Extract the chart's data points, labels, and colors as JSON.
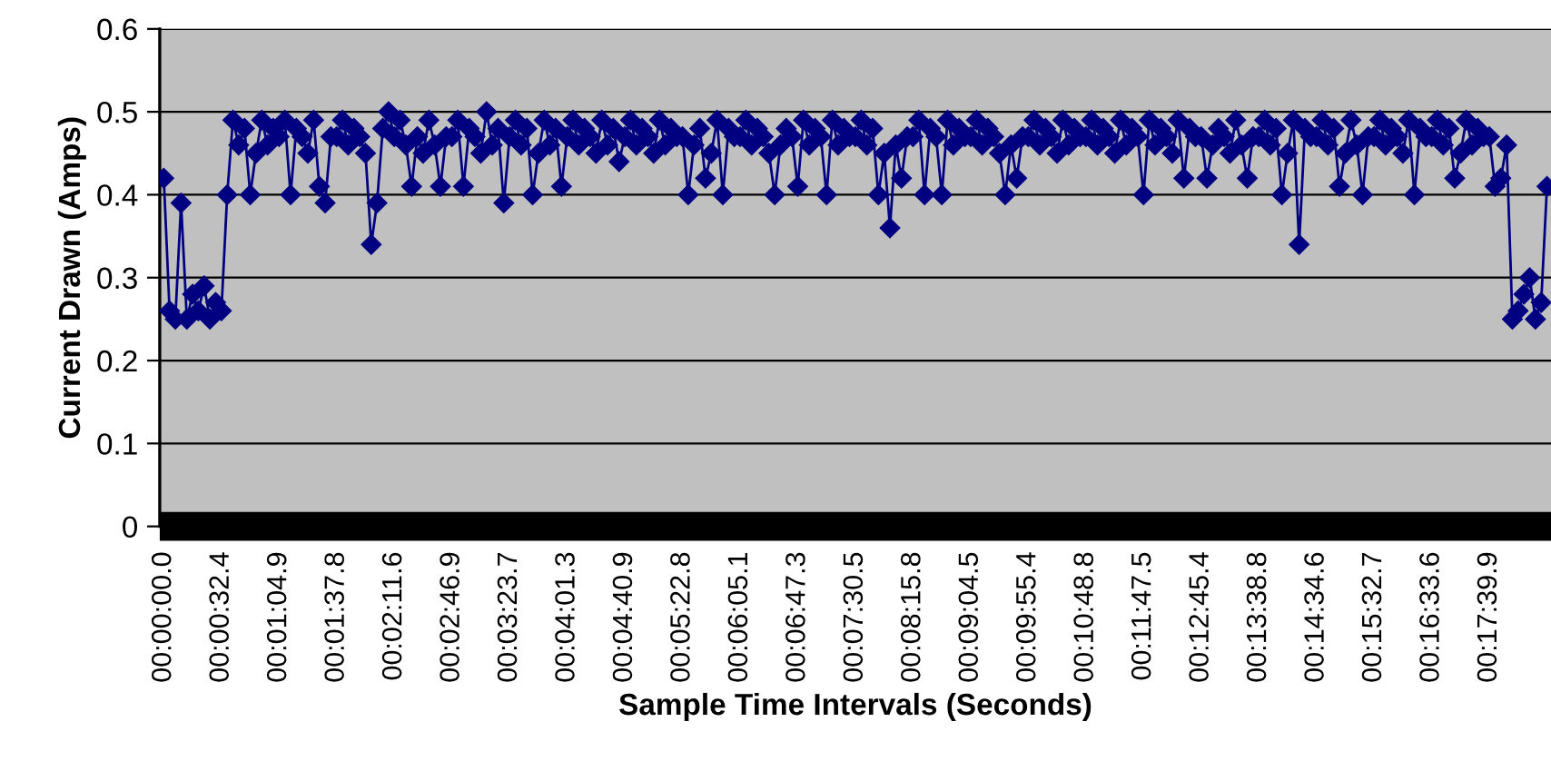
{
  "chart_data": {
    "type": "line",
    "xlabel": "Sample Time Intervals (Seconds)",
    "ylabel": "Current Drawn (Amps)",
    "categories": [
      "00:00:00.0",
      null,
      null,
      null,
      null,
      null,
      null,
      null,
      null,
      null,
      "00:00:32.4",
      null,
      null,
      null,
      null,
      null,
      null,
      null,
      null,
      null,
      "00:01:04.9",
      null,
      null,
      null,
      null,
      null,
      null,
      null,
      null,
      null,
      "00:01:37.8",
      null,
      null,
      null,
      null,
      null,
      null,
      null,
      null,
      null,
      "00:02:11.6",
      null,
      null,
      null,
      null,
      null,
      null,
      null,
      null,
      null,
      "00:02:46.9",
      null,
      null,
      null,
      null,
      null,
      null,
      null,
      null,
      null,
      "00:03:23.7",
      null,
      null,
      null,
      null,
      null,
      null,
      null,
      null,
      null,
      "00:04:01.3",
      null,
      null,
      null,
      null,
      null,
      null,
      null,
      null,
      null,
      "00:04:40.9",
      null,
      null,
      null,
      null,
      null,
      null,
      null,
      null,
      null,
      "00:05:22.8",
      null,
      null,
      null,
      null,
      null,
      null,
      null,
      null,
      null,
      "00:06:05.1",
      null,
      null,
      null,
      null,
      null,
      null,
      null,
      null,
      null,
      "00:06:47.3",
      null,
      null,
      null,
      null,
      null,
      null,
      null,
      null,
      null,
      "00:07:30.5",
      null,
      null,
      null,
      null,
      null,
      null,
      null,
      null,
      null,
      "00:08:15.8",
      null,
      null,
      null,
      null,
      null,
      null,
      null,
      null,
      null,
      "00:09:04.5",
      null,
      null,
      null,
      null,
      null,
      null,
      null,
      null,
      null,
      "00:09:55.4",
      null,
      null,
      null,
      null,
      null,
      null,
      null,
      null,
      null,
      "00:10:48.8",
      null,
      null,
      null,
      null,
      null,
      null,
      null,
      null,
      null,
      "00:11:47.5",
      null,
      null,
      null,
      null,
      null,
      null,
      null,
      null,
      null,
      "00:12:45.4",
      null,
      null,
      null,
      null,
      null,
      null,
      null,
      null,
      null,
      "00:13:38.8",
      null,
      null,
      null,
      null,
      null,
      null,
      null,
      null,
      null,
      "00:14:34.6",
      null,
      null,
      null,
      null,
      null,
      null,
      null,
      null,
      null,
      "00:15:32.7",
      null,
      null,
      null,
      null,
      null,
      null,
      null,
      null,
      null,
      "00:16:33.6",
      null,
      null,
      null,
      null,
      null,
      null,
      null,
      null,
      null,
      "00:17:39.9",
      null,
      null,
      null,
      null,
      null,
      null,
      null,
      null,
      null,
      null
    ],
    "series": [
      {
        "color": "#000080",
        "values": [
          0.42,
          0.26,
          0.25,
          0.39,
          0.25,
          0.28,
          0.26,
          0.29,
          0.25,
          0.27,
          0.26,
          0.4,
          0.49,
          0.46,
          0.48,
          0.4,
          0.45,
          0.49,
          0.46,
          0.48,
          0.47,
          0.49,
          0.4,
          0.48,
          0.47,
          0.45,
          0.49,
          0.41,
          0.39,
          0.47,
          0.47,
          0.49,
          0.46,
          0.48,
          0.47,
          0.45,
          0.34,
          0.39,
          0.48,
          0.5,
          0.47,
          0.49,
          0.46,
          0.41,
          0.47,
          0.45,
          0.49,
          0.46,
          0.41,
          0.47,
          0.47,
          0.49,
          0.41,
          0.48,
          0.47,
          0.45,
          0.5,
          0.46,
          0.48,
          0.39,
          0.47,
          0.49,
          0.46,
          0.48,
          0.4,
          0.45,
          0.49,
          0.46,
          0.48,
          0.41,
          0.47,
          0.49,
          0.46,
          0.48,
          0.47,
          0.45,
          0.49,
          0.46,
          0.48,
          0.44,
          0.47,
          0.49,
          0.46,
          0.48,
          0.47,
          0.45,
          0.49,
          0.46,
          0.48,
          0.47,
          0.47,
          0.4,
          0.46,
          0.48,
          0.42,
          0.45,
          0.49,
          0.4,
          0.48,
          0.47,
          0.47,
          0.49,
          0.46,
          0.48,
          0.47,
          0.45,
          0.4,
          0.46,
          0.48,
          0.47,
          0.41,
          0.49,
          0.46,
          0.48,
          0.47,
          0.4,
          0.49,
          0.46,
          0.48,
          0.47,
          0.47,
          0.49,
          0.46,
          0.48,
          0.4,
          0.45,
          0.36,
          0.46,
          0.42,
          0.47,
          0.47,
          0.49,
          0.4,
          0.48,
          0.47,
          0.4,
          0.49,
          0.46,
          0.48,
          0.47,
          0.47,
          0.49,
          0.46,
          0.48,
          0.47,
          0.45,
          0.4,
          0.46,
          0.42,
          0.47,
          0.47,
          0.49,
          0.46,
          0.48,
          0.47,
          0.45,
          0.49,
          0.46,
          0.48,
          0.47,
          0.47,
          0.49,
          0.46,
          0.48,
          0.47,
          0.45,
          0.49,
          0.46,
          0.48,
          0.47,
          0.4,
          0.49,
          0.46,
          0.48,
          0.47,
          0.45,
          0.49,
          0.42,
          0.48,
          0.47,
          0.47,
          0.42,
          0.46,
          0.48,
          0.47,
          0.45,
          0.49,
          0.46,
          0.42,
          0.47,
          0.47,
          0.49,
          0.46,
          0.48,
          0.4,
          0.45,
          0.49,
          0.34,
          0.48,
          0.47,
          0.47,
          0.49,
          0.46,
          0.48,
          0.41,
          0.45,
          0.49,
          0.46,
          0.4,
          0.47,
          0.47,
          0.49,
          0.46,
          0.48,
          0.47,
          0.45,
          0.49,
          0.4,
          0.48,
          0.47,
          0.47,
          0.49,
          0.46,
          0.48,
          0.42,
          0.45,
          0.49,
          0.46,
          0.48,
          0.47,
          0.47,
          0.41,
          0.42,
          0.46,
          0.25,
          0.26,
          0.28,
          0.3,
          0.25,
          0.27,
          0.41
        ]
      }
    ],
    "ylim": [
      0,
      0.6
    ],
    "yticks": [
      0,
      0.1,
      0.2,
      0.3,
      0.4,
      0.5,
      0.6
    ],
    "grid": "y",
    "marker": "diamond",
    "line_style": "solid"
  }
}
